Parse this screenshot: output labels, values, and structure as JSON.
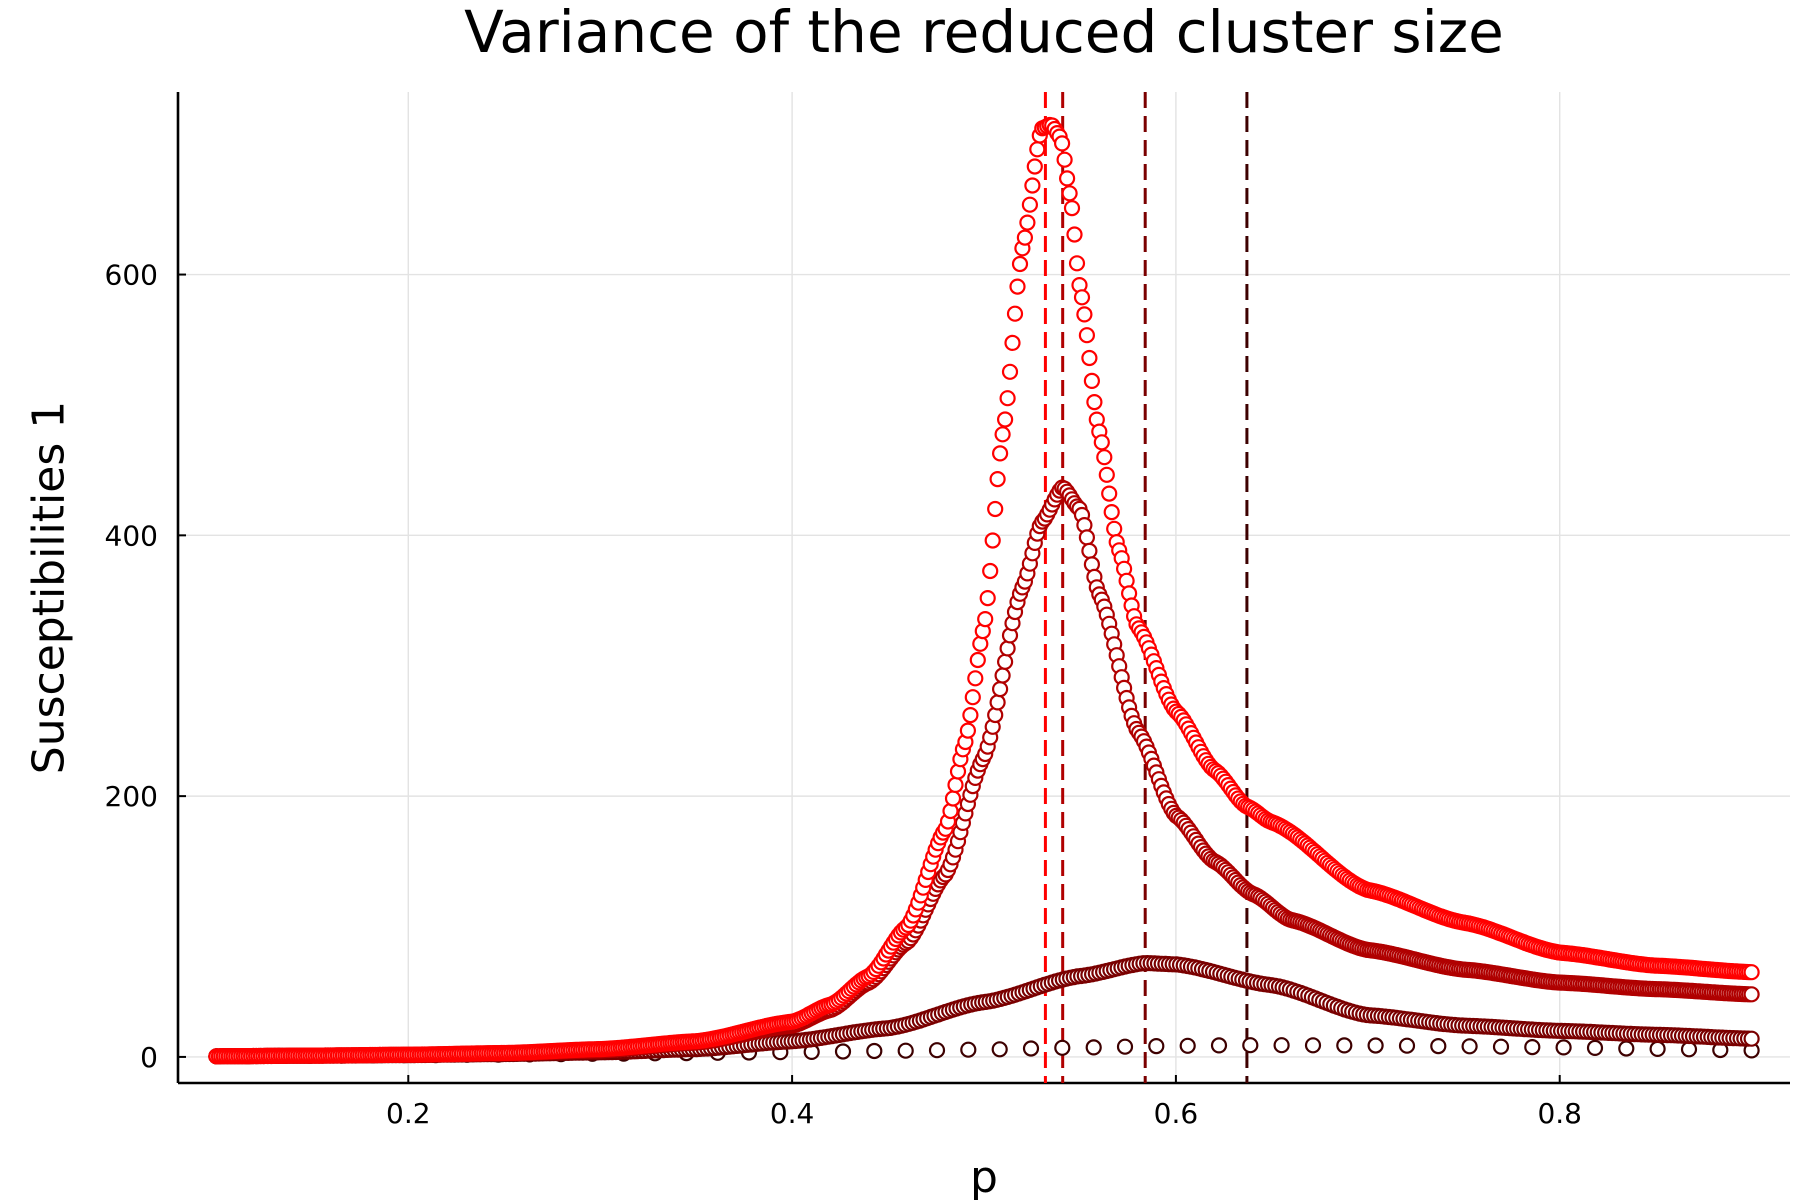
{
  "chart_data": {
    "type": "scatter",
    "title": "Variance of the reduced cluster size",
    "xlabel": "p",
    "ylabel": "Susceptibilities 1",
    "xlim": [
      0.08,
      0.92
    ],
    "ylim": [
      -20,
      740
    ],
    "x_ticks": [
      0.2,
      0.4,
      0.6,
      0.8
    ],
    "x_tick_labels": [
      "0.2",
      "0.4",
      "0.6",
      "0.8"
    ],
    "y_ticks": [
      0,
      200,
      400,
      600
    ],
    "y_tick_labels": [
      "0",
      "200",
      "400",
      "600"
    ],
    "grid": true,
    "legend": "none",
    "series": [
      {
        "color": "#3d0000",
        "marker": "open-circle",
        "points": [
          [
            0.1,
            0.5
          ],
          [
            0.15,
            0.9
          ],
          [
            0.2,
            1.3
          ],
          [
            0.25,
            1.8
          ],
          [
            0.3,
            2.4
          ],
          [
            0.35,
            3.0
          ],
          [
            0.4,
            3.7
          ],
          [
            0.45,
            4.6
          ],
          [
            0.5,
            5.7
          ],
          [
            0.55,
            7.2
          ],
          [
            0.6,
            8.5
          ],
          [
            0.637,
            9.0
          ],
          [
            0.7,
            8.8
          ],
          [
            0.75,
            8.2
          ],
          [
            0.8,
            7.3
          ],
          [
            0.85,
            6.2
          ],
          [
            0.9,
            5.0
          ]
        ],
        "peak_p": 0.637
      },
      {
        "color": "#7a0000",
        "marker": "open-circle",
        "points": [
          [
            0.1,
            0.5
          ],
          [
            0.15,
            0.9
          ],
          [
            0.2,
            1.4
          ],
          [
            0.25,
            2.2
          ],
          [
            0.3,
            3.5
          ],
          [
            0.35,
            6.0
          ],
          [
            0.4,
            12
          ],
          [
            0.45,
            22
          ],
          [
            0.5,
            42
          ],
          [
            0.55,
            62
          ],
          [
            0.584,
            72
          ],
          [
            0.6,
            71
          ],
          [
            0.65,
            55
          ],
          [
            0.7,
            32
          ],
          [
            0.75,
            24
          ],
          [
            0.8,
            20
          ],
          [
            0.85,
            17
          ],
          [
            0.9,
            14
          ]
        ],
        "peak_p": 0.584
      },
      {
        "color": "#b00000",
        "marker": "open-circle",
        "points": [
          [
            0.1,
            0.5
          ],
          [
            0.15,
            1.0
          ],
          [
            0.2,
            1.6
          ],
          [
            0.25,
            2.8
          ],
          [
            0.3,
            5
          ],
          [
            0.35,
            11
          ],
          [
            0.4,
            24
          ],
          [
            0.42,
            36
          ],
          [
            0.44,
            57
          ],
          [
            0.46,
            88
          ],
          [
            0.48,
            140
          ],
          [
            0.5,
            230
          ],
          [
            0.52,
            360
          ],
          [
            0.53,
            410
          ],
          [
            0.541,
            437
          ],
          [
            0.55,
            420
          ],
          [
            0.56,
            355
          ],
          [
            0.58,
            250
          ],
          [
            0.6,
            185
          ],
          [
            0.62,
            150
          ],
          [
            0.64,
            125
          ],
          [
            0.66,
            105
          ],
          [
            0.7,
            82
          ],
          [
            0.75,
            67
          ],
          [
            0.8,
            57
          ],
          [
            0.85,
            52
          ],
          [
            0.9,
            48
          ]
        ],
        "peak_p": 0.541
      },
      {
        "color": "#ff0000",
        "marker": "open-circle",
        "points": [
          [
            0.1,
            0.5
          ],
          [
            0.15,
            1.0
          ],
          [
            0.2,
            1.7
          ],
          [
            0.25,
            3.0
          ],
          [
            0.3,
            6
          ],
          [
            0.35,
            12
          ],
          [
            0.4,
            27
          ],
          [
            0.42,
            40
          ],
          [
            0.44,
            62
          ],
          [
            0.46,
            100
          ],
          [
            0.48,
            175
          ],
          [
            0.49,
            240
          ],
          [
            0.5,
            330
          ],
          [
            0.51,
            480
          ],
          [
            0.52,
            620
          ],
          [
            0.53,
            712
          ],
          [
            0.535,
            715
          ],
          [
            0.54,
            705
          ],
          [
            0.545,
            660
          ],
          [
            0.55,
            590
          ],
          [
            0.56,
            480
          ],
          [
            0.57,
            390
          ],
          [
            0.58,
            330
          ],
          [
            0.6,
            265
          ],
          [
            0.62,
            220
          ],
          [
            0.637,
            192
          ],
          [
            0.65,
            180
          ],
          [
            0.7,
            128
          ],
          [
            0.75,
            103
          ],
          [
            0.8,
            80
          ],
          [
            0.85,
            70
          ],
          [
            0.9,
            65
          ]
        ],
        "peak_p": 0.532
      }
    ],
    "vlines": [
      {
        "x": 0.532,
        "color": "#ff0000",
        "style": "dashed"
      },
      {
        "x": 0.541,
        "color": "#b00000",
        "style": "dashed"
      },
      {
        "x": 0.584,
        "color": "#7a0000",
        "style": "dashed"
      },
      {
        "x": 0.637,
        "color": "#3d0000",
        "style": "dashed"
      }
    ]
  }
}
